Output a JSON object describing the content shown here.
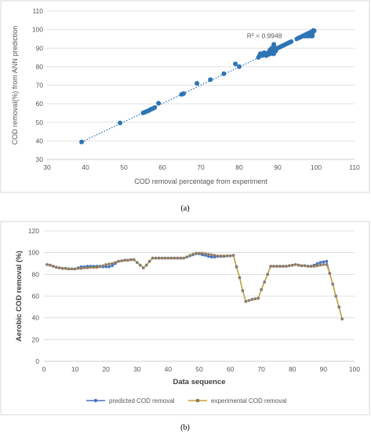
{
  "chart_data": [
    {
      "type": "scatter",
      "panel_label": "(a)",
      "xlabel": "COD removal percentage from experiment",
      "ylabel": "COD removal(%)  from ANN prediction",
      "xlim": [
        30,
        110
      ],
      "ylim": [
        30,
        110
      ],
      "xticks": [
        30,
        40,
        50,
        60,
        70,
        80,
        90,
        100,
        110
      ],
      "yticks": [
        30,
        40,
        50,
        60,
        70,
        80,
        90,
        100,
        110
      ],
      "grid": true,
      "annotation": "R² = 0.9948",
      "trendline": {
        "x": [
          39,
          99.5
        ],
        "y": [
          39.4,
          99.1
        ]
      },
      "points": [
        [
          39,
          39.4
        ],
        [
          49,
          49.7
        ],
        [
          55,
          55.1
        ],
        [
          55.5,
          55.5
        ],
        [
          56,
          56
        ],
        [
          56.5,
          56.4
        ],
        [
          57,
          57
        ],
        [
          57.5,
          57.4
        ],
        [
          58,
          58
        ],
        [
          59,
          60.3
        ],
        [
          65,
          65.1
        ],
        [
          65.5,
          65.5
        ],
        [
          69,
          71
        ],
        [
          72.5,
          73
        ],
        [
          76,
          76.2
        ],
        [
          79,
          81.5
        ],
        [
          80,
          80
        ],
        [
          85,
          85
        ],
        [
          85.3,
          86
        ],
        [
          85.5,
          87
        ],
        [
          86,
          86
        ],
        [
          86,
          87
        ],
        [
          86.5,
          86.5
        ],
        [
          86.5,
          87.5
        ],
        [
          87,
          87
        ],
        [
          87,
          86
        ],
        [
          87.5,
          87.5
        ],
        [
          87.5,
          86.5
        ],
        [
          88,
          88
        ],
        [
          88,
          87
        ],
        [
          88,
          89
        ],
        [
          88.3,
          89.5
        ],
        [
          88.5,
          90
        ],
        [
          88.5,
          88
        ],
        [
          88.7,
          87
        ],
        [
          89,
          92
        ],
        [
          89,
          91
        ],
        [
          89,
          89
        ],
        [
          89,
          87
        ],
        [
          89.3,
          90
        ],
        [
          89.5,
          88.5
        ],
        [
          90,
          90
        ],
        [
          90.5,
          90.5
        ],
        [
          91,
          91
        ],
        [
          91.5,
          91.5
        ],
        [
          92,
          92
        ],
        [
          92.5,
          92.5
        ],
        [
          93,
          93
        ],
        [
          93.5,
          93.5
        ],
        [
          95,
          95
        ],
        [
          95.5,
          95.5
        ],
        [
          96,
          96
        ],
        [
          96.5,
          96.5
        ],
        [
          97,
          97
        ],
        [
          97,
          96.5
        ],
        [
          97.5,
          97.5
        ],
        [
          97.5,
          96.5
        ],
        [
          98,
          98
        ],
        [
          98,
          97
        ],
        [
          98,
          96.5
        ],
        [
          98.5,
          98.5
        ],
        [
          98.5,
          96.5
        ],
        [
          99,
          99
        ],
        [
          99,
          98
        ],
        [
          99,
          97
        ],
        [
          99.3,
          99.5
        ],
        [
          99.5,
          99.3
        ],
        [
          99,
          96.5
        ]
      ]
    },
    {
      "type": "line",
      "panel_label": "(b)",
      "xlabel": "Data sequence",
      "ylabel": "Aerobic COD removal (%)",
      "xlim": [
        0,
        100
      ],
      "ylim": [
        0,
        120
      ],
      "xticks": [
        0,
        10,
        20,
        30,
        40,
        50,
        60,
        70,
        80,
        90,
        100
      ],
      "yticks": [
        0,
        20,
        40,
        60,
        80,
        100,
        120
      ],
      "grid": true,
      "legend_position": "bottom",
      "x": [
        1,
        2,
        3,
        4,
        5,
        6,
        7,
        8,
        9,
        10,
        11,
        12,
        13,
        14,
        15,
        16,
        17,
        18,
        19,
        20,
        21,
        22,
        23,
        24,
        25,
        26,
        27,
        28,
        29,
        30,
        31,
        32,
        33,
        34,
        35,
        36,
        37,
        38,
        39,
        40,
        41,
        42,
        43,
        44,
        45,
        46,
        47,
        48,
        49,
        50,
        51,
        52,
        53,
        54,
        55,
        56,
        57,
        58,
        59,
        60,
        61,
        62,
        63,
        64,
        65,
        66,
        67,
        68,
        69,
        70,
        71,
        72,
        73,
        74,
        75,
        76,
        77,
        78,
        79,
        80,
        81,
        82,
        83,
        84,
        85,
        86,
        87,
        88,
        89,
        90,
        91,
        92,
        93,
        94,
        95,
        96
      ],
      "series": [
        {
          "name": "predicted COD removal",
          "color": "#4472C4",
          "values": [
            89,
            88.5,
            87.5,
            86.5,
            86,
            85.5,
            85.5,
            85,
            85,
            85,
            86,
            87,
            87,
            87.5,
            87.5,
            87.5,
            87.5,
            87.5,
            87,
            87,
            87,
            88,
            90,
            92,
            92.5,
            93,
            93,
            93.5,
            93.5,
            91,
            88.5,
            86,
            88.5,
            92,
            95,
            95,
            95,
            95,
            95,
            95,
            95,
            95,
            95,
            95,
            95,
            96,
            97,
            98,
            99,
            99,
            98,
            97.5,
            96.5,
            96,
            96,
            96.5,
            96.5,
            96.5,
            97,
            97,
            97.5,
            87,
            77,
            65,
            55,
            56,
            57,
            57.5,
            58,
            66,
            73,
            80,
            87.5,
            87.5,
            87.5,
            87.5,
            87.5,
            87.5,
            88,
            88.5,
            89,
            88.5,
            88,
            88,
            87.5,
            87.5,
            88.5,
            90,
            91,
            91.5,
            92,
            81,
            71,
            60,
            50,
            39
          ]
        },
        {
          "name": "experimental COD removal",
          "color": "#C9A227",
          "values": [
            89,
            88.5,
            87.5,
            86.5,
            86,
            85.5,
            85.5,
            85,
            85,
            85,
            85.5,
            85.5,
            86,
            86,
            86.5,
            86.5,
            86.5,
            87,
            88,
            89,
            89.5,
            90,
            91,
            92,
            92.5,
            93,
            93,
            93.5,
            93.5,
            91,
            88.5,
            86,
            88.5,
            92,
            95,
            95,
            95,
            95,
            95,
            95,
            95,
            95,
            95,
            95,
            95,
            96,
            97.5,
            98.5,
            99.5,
            99.5,
            99.5,
            99,
            98.5,
            98,
            97.5,
            97,
            97,
            97,
            97,
            97,
            97.5,
            87,
            77,
            65,
            55,
            56,
            57,
            57.5,
            58,
            66,
            73,
            80,
            87.5,
            87.5,
            87.5,
            87.5,
            87.5,
            87.5,
            88,
            88.5,
            89,
            88.5,
            88,
            88,
            87.5,
            87.5,
            87.5,
            88,
            88.5,
            89,
            89,
            81,
            71,
            60,
            50,
            39
          ]
        }
      ]
    }
  ]
}
